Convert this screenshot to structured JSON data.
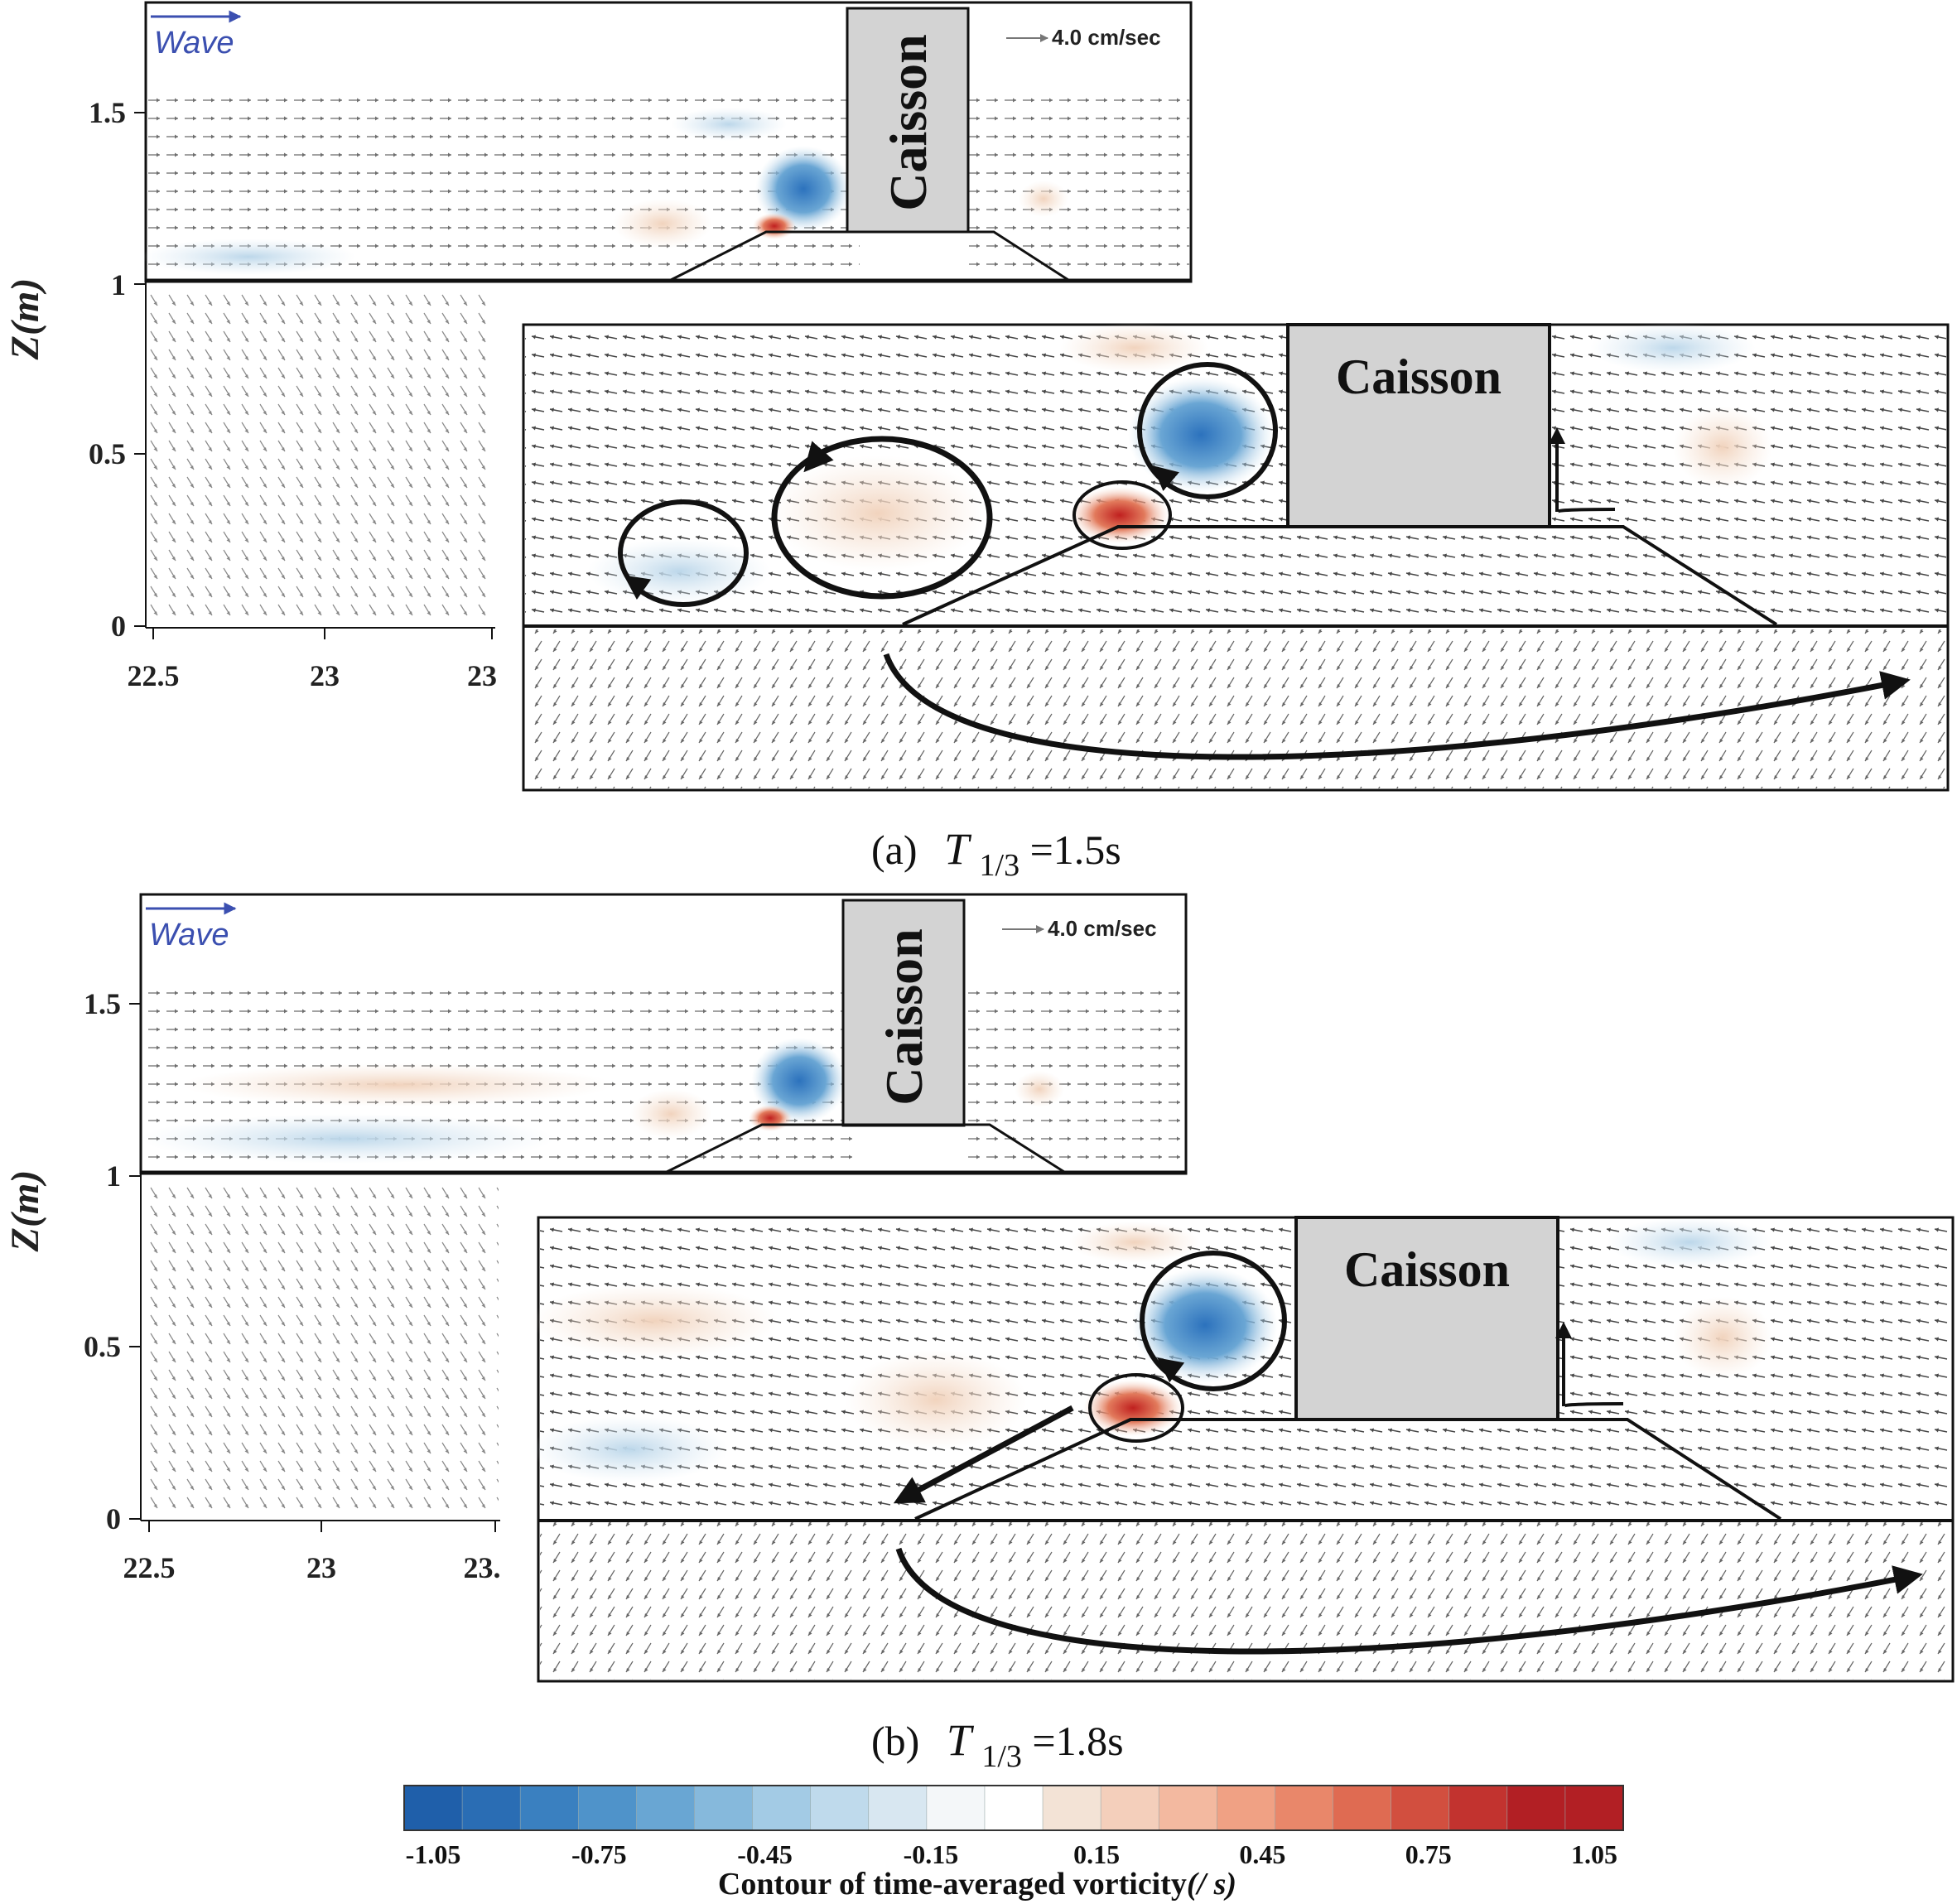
{
  "chart_data": [
    {
      "type": "vector-field-contour",
      "panel": "a",
      "caption": {
        "label": "(a)",
        "symbol": "T",
        "subscript": "1/3",
        "value": "=1.5s"
      },
      "ylabel": "Z(m)",
      "yticks": [
        "0",
        "0.5",
        "1",
        "1.5"
      ],
      "xticks": [
        "22.5",
        "23",
        "23"
      ],
      "wave_label": "Wave",
      "scale_label": "4.0 cm/sec",
      "structure_label": "Caisson",
      "inset_structure_label": "Caisson",
      "vortices": [
        {
          "sign": "negative",
          "z": 1.27,
          "strength": -1.05
        },
        {
          "sign": "positive",
          "z": 1.16,
          "strength": 1.05
        }
      ]
    },
    {
      "type": "vector-field-contour",
      "panel": "b",
      "caption": {
        "label": "(b)",
        "symbol": "T",
        "subscript": "1/3",
        "value": "=1.8s"
      },
      "ylabel": "Z(m)",
      "yticks": [
        "0",
        "0.5",
        "1",
        "1.5"
      ],
      "xticks": [
        "22.5",
        "23",
        "23."
      ],
      "wave_label": "Wave",
      "scale_label": "4.0 cm/sec",
      "structure_label": "Caisson",
      "inset_structure_label": "Caisson",
      "vortices": [
        {
          "sign": "negative",
          "z": 1.27,
          "strength": -1.05
        },
        {
          "sign": "positive",
          "z": 1.16,
          "strength": 1.05
        }
      ]
    }
  ],
  "colorbar": {
    "title": "Contour of time-averaged vorticity",
    "title_unit": "(/ s)",
    "tick_labels": [
      "-1.05",
      "-0.75",
      "-0.45",
      "-0.15",
      "0.15",
      "0.45",
      "0.75",
      "1.05"
    ],
    "colors": [
      "#1f5faa",
      "#2a6db4",
      "#3a80c0",
      "#4f93ca",
      "#69a6d3",
      "#86b9dc",
      "#a3cbe5",
      "#bfdaec",
      "#d8e7f1",
      "#f4f7f9",
      "#ffffff",
      "#f3e3d6",
      "#f4cfbb",
      "#f3b9a0",
      "#f0a184",
      "#e9876a",
      "#df6b52",
      "#d24f3f",
      "#c2332f",
      "#b21f24",
      "#b21f24"
    ]
  }
}
